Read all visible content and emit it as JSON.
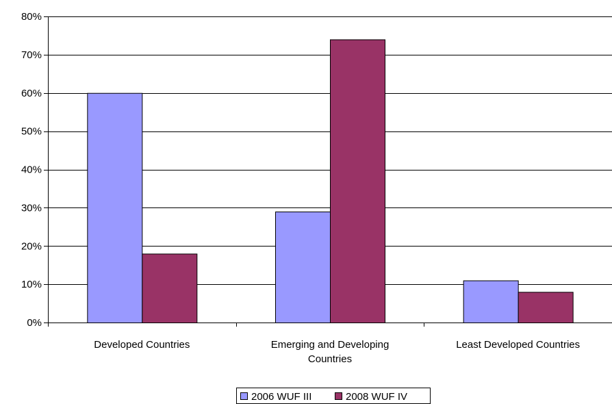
{
  "chart_data": {
    "type": "bar",
    "categories": [
      [
        "Developed Countries"
      ],
      [
        "Emerging and Developing",
        "Countries"
      ],
      [
        "Least Developed Countries"
      ]
    ],
    "series": [
      {
        "name": "2006 WUF III",
        "color": "#9999FF",
        "values": [
          60,
          29,
          11
        ]
      },
      {
        "name": "2008 WUF IV",
        "color": "#993366",
        "values": [
          18,
          74,
          8
        ]
      }
    ],
    "ylim": [
      0,
      80
    ],
    "ytick_labels": [
      "0%",
      "10%",
      "20%",
      "30%",
      "40%",
      "50%",
      "60%",
      "70%",
      "80%"
    ],
    "grid": true,
    "legend_position": "bottom-center"
  }
}
